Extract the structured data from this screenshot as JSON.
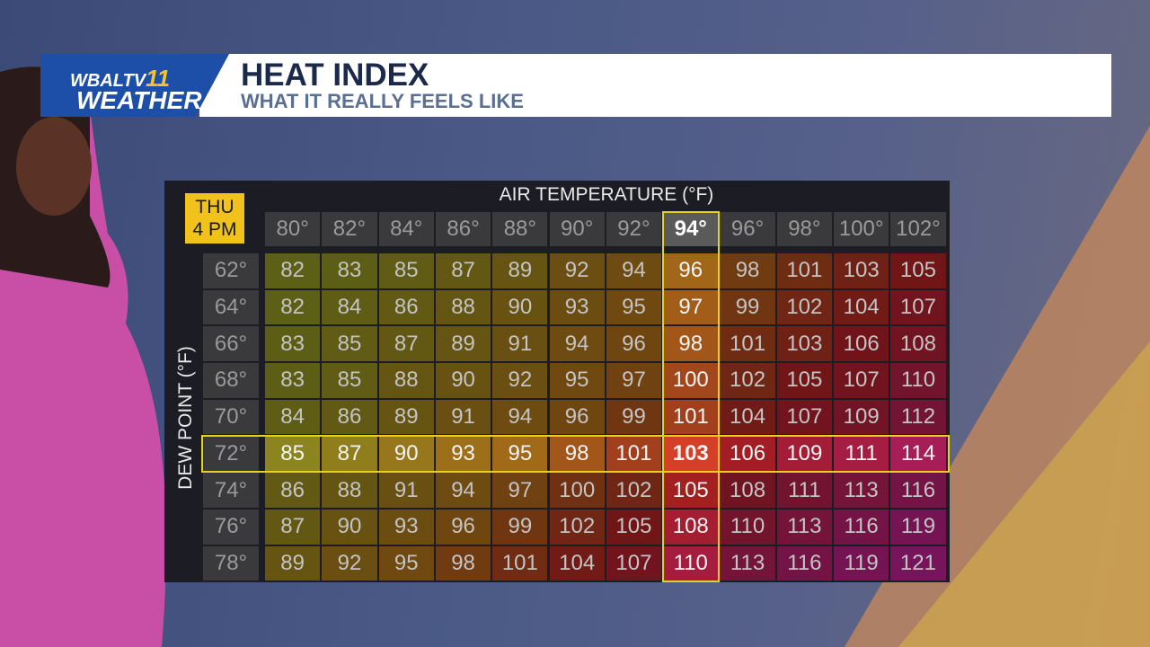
{
  "header": {
    "logo_top": "WBALTV",
    "logo_channel": "11",
    "logo_bottom": "WEATHER",
    "title": "HEAT INDEX",
    "subtitle": "WHAT IT REALLY FEELS LIKE"
  },
  "table": {
    "day": "THU",
    "time": "4 PM",
    "x_label": "AIR TEMPERATURE (°F)",
    "y_label": "DEW POINT (°F)",
    "highlight_column": 7,
    "highlight_row": 5,
    "columns": [
      "80°",
      "82°",
      "84°",
      "86°",
      "88°",
      "90°",
      "92°",
      "94°",
      "96°",
      "98°",
      "100°",
      "102°"
    ],
    "rows": [
      {
        "label": "62°",
        "cells": [
          82,
          83,
          85,
          87,
          89,
          92,
          94,
          96,
          98,
          101,
          103,
          105
        ]
      },
      {
        "label": "64°",
        "cells": [
          82,
          84,
          86,
          88,
          90,
          93,
          95,
          97,
          99,
          102,
          104,
          107
        ]
      },
      {
        "label": "66°",
        "cells": [
          83,
          85,
          87,
          89,
          91,
          94,
          96,
          98,
          101,
          103,
          106,
          108
        ]
      },
      {
        "label": "68°",
        "cells": [
          83,
          85,
          88,
          90,
          92,
          95,
          97,
          100,
          102,
          105,
          107,
          110
        ]
      },
      {
        "label": "70°",
        "cells": [
          84,
          86,
          89,
          91,
          94,
          96,
          99,
          101,
          104,
          107,
          109,
          112
        ]
      },
      {
        "label": "72°",
        "cells": [
          85,
          87,
          90,
          93,
          95,
          98,
          101,
          103,
          106,
          109,
          111,
          114
        ]
      },
      {
        "label": "74°",
        "cells": [
          86,
          88,
          91,
          94,
          97,
          100,
          102,
          105,
          108,
          111,
          113,
          116
        ]
      },
      {
        "label": "76°",
        "cells": [
          87,
          90,
          93,
          96,
          99,
          102,
          105,
          108,
          110,
          113,
          116,
          119
        ]
      },
      {
        "label": "78°",
        "cells": [
          89,
          92,
          95,
          98,
          101,
          104,
          107,
          110,
          113,
          116,
          119,
          121
        ]
      }
    ]
  }
}
